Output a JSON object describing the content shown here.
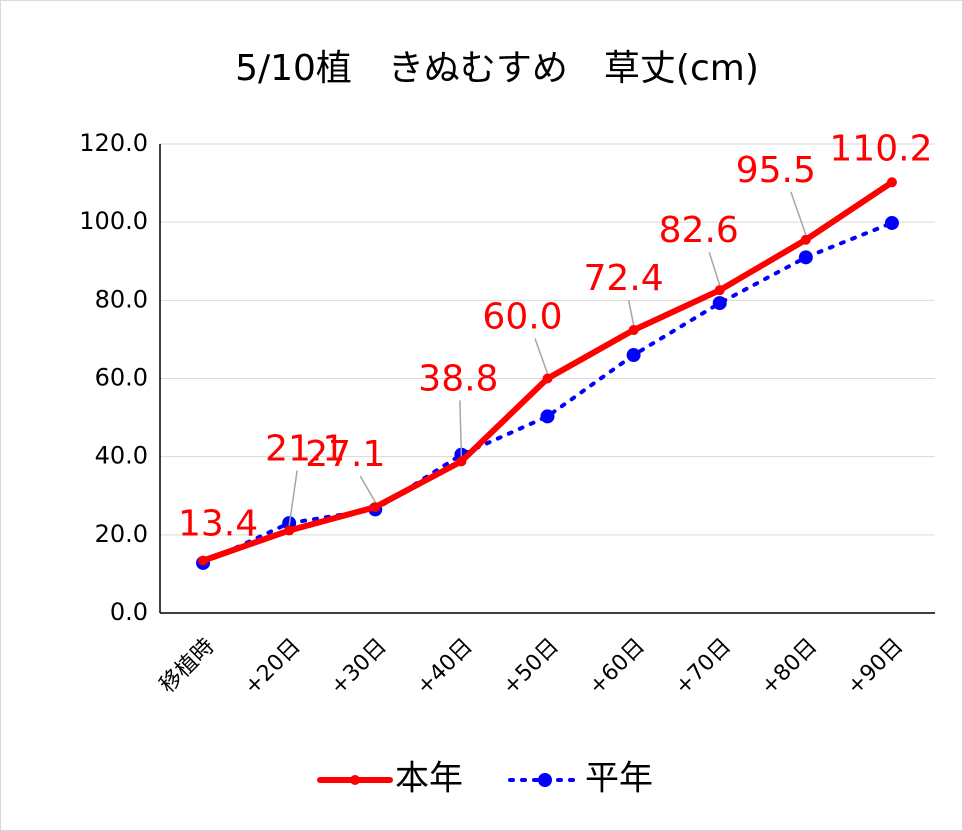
{
  "chart_data": {
    "type": "line",
    "title": "5/10植　きぬむすめ　草丈(cm)",
    "categories": [
      "移植時",
      "+20日",
      "+30日",
      "+40日",
      "+50日",
      "+60日",
      "+70日",
      "+80日",
      "+90日"
    ],
    "series": [
      {
        "name": "本年",
        "color": "#ff0000",
        "style": "solid",
        "values": [
          13.4,
          21.1,
          27.1,
          38.8,
          60.0,
          72.4,
          82.6,
          95.5,
          110.2
        ],
        "value_labels": [
          "13.4",
          "21.1",
          "27.1",
          "38.8",
          "60.0",
          "72.4",
          "82.6",
          "95.5",
          "110.2"
        ]
      },
      {
        "name": "平年",
        "color": "#0000ff",
        "style": "dotted",
        "values": [
          12.8,
          23.0,
          26.5,
          40.5,
          50.3,
          66.0,
          79.3,
          91.0,
          99.8
        ]
      }
    ],
    "ylim": [
      0,
      120
    ],
    "yticks": [
      {
        "value": 0,
        "label": "0.0"
      },
      {
        "value": 20,
        "label": "20.0"
      },
      {
        "value": 40,
        "label": "40.0"
      },
      {
        "value": 60,
        "label": "60.0"
      },
      {
        "value": 80,
        "label": "80.0"
      },
      {
        "value": 100,
        "label": "100.0"
      },
      {
        "value": 120,
        "label": "120.0"
      }
    ],
    "grid": true,
    "legend": "bottom"
  }
}
